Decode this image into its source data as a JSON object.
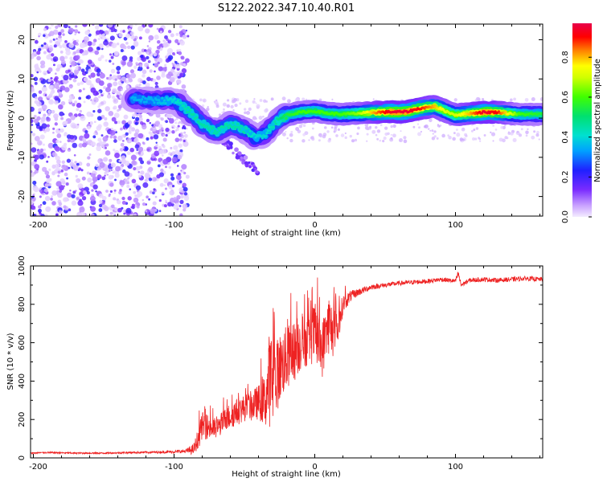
{
  "title": "S122.2022.347.10.40.R01",
  "colors": {
    "snr_line": "#ee2222",
    "frame": "#000000",
    "colormap": [
      "#f0e8ff",
      "#c8a0ff",
      "#7a2cff",
      "#2020ff",
      "#00c8ff",
      "#00e070",
      "#40ff00",
      "#ffff00",
      "#ff8000",
      "#ff0000",
      "#e8004a"
    ]
  },
  "chart_data": [
    {
      "type": "heatmap",
      "name": "spectrogram",
      "title": "S122.2022.347.10.40.R01",
      "xlabel": "Height of straight line (km)",
      "ylabel": "Frequency (Hz)",
      "xlim": [
        -202,
        162
      ],
      "ylim": [
        -25,
        24
      ],
      "xticks": [
        -200,
        -100,
        0,
        100
      ],
      "xtick_labels": [
        "-200",
        "-100",
        "0",
        "100"
      ],
      "yticks": [
        -20,
        -10,
        0,
        10,
        20
      ],
      "ytick_labels": [
        "-20",
        "-10",
        "0",
        "10",
        "20"
      ],
      "noise_region": {
        "x_range": [
          -202,
          -100
        ],
        "description": "scattered low-amplitude noise"
      },
      "ridge": [
        {
          "x": -130,
          "f": 5.0,
          "amp": 0.35
        },
        {
          "x": -115,
          "f": 4.5,
          "amp": 0.35
        },
        {
          "x": -100,
          "f": 4.5,
          "amp": 0.4
        },
        {
          "x": -90,
          "f": 2.0,
          "amp": 0.45
        },
        {
          "x": -80,
          "f": -1.5,
          "amp": 0.45
        },
        {
          "x": -70,
          "f": -3.5,
          "amp": 0.45
        },
        {
          "x": -60,
          "f": -1.5,
          "amp": 0.45
        },
        {
          "x": -50,
          "f": -3.0,
          "amp": 0.45
        },
        {
          "x": -42,
          "f": -5.0,
          "amp": 0.4
        },
        {
          "x": -35,
          "f": -4.0,
          "amp": 0.4
        },
        {
          "x": -28,
          "f": -1.0,
          "amp": 0.45
        },
        {
          "x": -20,
          "f": 0.8,
          "amp": 0.55
        },
        {
          "x": -10,
          "f": 1.5,
          "amp": 0.6
        },
        {
          "x": 0,
          "f": 1.8,
          "amp": 0.6
        },
        {
          "x": 10,
          "f": 1.2,
          "amp": 0.6
        },
        {
          "x": 20,
          "f": 1.0,
          "amp": 0.6
        },
        {
          "x": 30,
          "f": 1.2,
          "amp": 0.65
        },
        {
          "x": 45,
          "f": 1.5,
          "amp": 0.85
        },
        {
          "x": 55,
          "f": 1.6,
          "amp": 0.95
        },
        {
          "x": 65,
          "f": 1.6,
          "amp": 0.95
        },
        {
          "x": 75,
          "f": 2.5,
          "amp": 0.9
        },
        {
          "x": 85,
          "f": 3.0,
          "amp": 0.8
        },
        {
          "x": 95,
          "f": 1.5,
          "amp": 0.7
        },
        {
          "x": 100,
          "f": 0.8,
          "amp": 0.7
        },
        {
          "x": 110,
          "f": 1.2,
          "amp": 0.8
        },
        {
          "x": 120,
          "f": 1.5,
          "amp": 0.95
        },
        {
          "x": 130,
          "f": 1.5,
          "amp": 0.9
        },
        {
          "x": 145,
          "f": 1.0,
          "amp": 0.6
        },
        {
          "x": 162,
          "f": 1.0,
          "amp": 0.55
        }
      ],
      "colorbar": {
        "label": "Normalized spectral amplitude",
        "ticks": [
          0.0,
          0.2,
          0.4,
          0.6,
          0.8
        ],
        "tick_labels": [
          "0.0",
          "0.2",
          "0.4",
          "0.6",
          "0.8"
        ],
        "range": [
          0,
          0.97
        ]
      }
    },
    {
      "type": "line",
      "name": "snr",
      "xlabel": "Height of straight line (km)",
      "ylabel": "SNR (10 * v/v)",
      "xlim": [
        -202,
        162
      ],
      "ylim": [
        0,
        1000
      ],
      "xticks": [
        -200,
        -100,
        0,
        100
      ],
      "xtick_labels": [
        "-200",
        "-100",
        "0",
        "100"
      ],
      "yticks": [
        0,
        200,
        400,
        600,
        800,
        1000
      ],
      "ytick_labels": [
        "0",
        "200",
        "400",
        "600",
        "800",
        "1000"
      ],
      "series": [
        {
          "name": "SNR",
          "color": "#ee2222",
          "x": [
            -202,
            -190,
            -170,
            -150,
            -130,
            -110,
            -100,
            -92,
            -86,
            -82,
            -80,
            -75,
            -70,
            -65,
            -60,
            -55,
            -50,
            -45,
            -40,
            -35,
            -32,
            -30,
            -28,
            -25,
            -20,
            -15,
            -10,
            -5,
            0,
            5,
            10,
            15,
            20,
            25,
            30,
            40,
            50,
            60,
            70,
            80,
            90,
            100,
            102,
            104,
            110,
            120,
            130,
            140,
            150,
            160,
            162
          ],
          "y": [
            25,
            28,
            25,
            25,
            28,
            30,
            32,
            35,
            45,
            120,
            170,
            160,
            150,
            190,
            220,
            240,
            260,
            270,
            290,
            300,
            420,
            380,
            400,
            470,
            520,
            550,
            600,
            610,
            650,
            560,
            700,
            630,
            800,
            840,
            860,
            890,
            900,
            910,
            915,
            920,
            930,
            920,
            960,
            900,
            925,
            930,
            925,
            930,
            935,
            930,
            930
          ],
          "noise": [
            4,
            4,
            4,
            4,
            5,
            6,
            8,
            10,
            30,
            60,
            70,
            65,
            55,
            60,
            70,
            70,
            70,
            80,
            90,
            140,
            260,
            220,
            200,
            180,
            170,
            160,
            150,
            130,
            160,
            150,
            160,
            120,
            50,
            30,
            20,
            15,
            12,
            12,
            12,
            12,
            12,
            12,
            20,
            12,
            12,
            12,
            12,
            12,
            12,
            12,
            12
          ]
        }
      ]
    }
  ]
}
